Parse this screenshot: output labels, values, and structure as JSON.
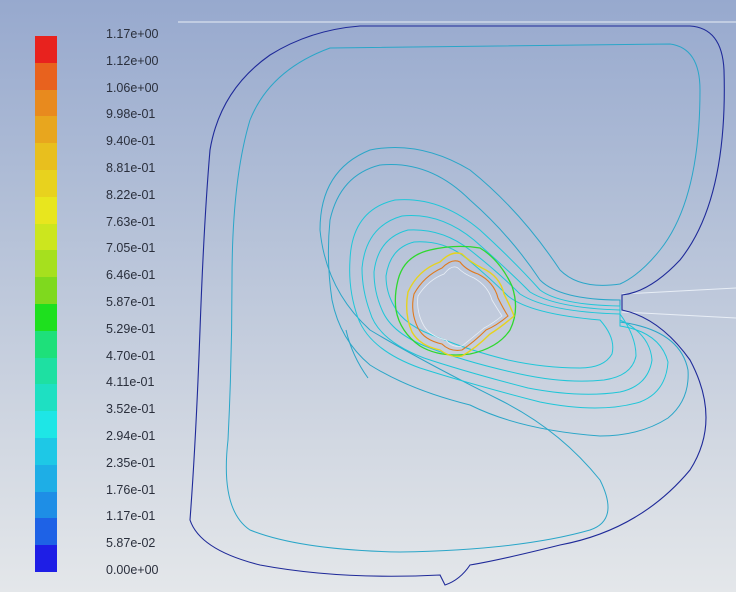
{
  "legend": {
    "labels": [
      "1.17e+00",
      "1.12e+00",
      "1.06e+00",
      "9.98e-01",
      "9.40e-01",
      "8.81e-01",
      "8.22e-01",
      "7.63e-01",
      "7.05e-01",
      "6.46e-01",
      "5.87e-01",
      "5.29e-01",
      "4.70e-01",
      "4.11e-01",
      "3.52e-01",
      "2.94e-01",
      "2.35e-01",
      "1.76e-01",
      "1.17e-01",
      "5.87e-02",
      "0.00e+00"
    ],
    "colors": [
      "#e8221e",
      "#e8621e",
      "#e88a1e",
      "#e8a61e",
      "#e8bf1e",
      "#e8d21e",
      "#e8e61e",
      "#cce61e",
      "#a6e01e",
      "#7fd91e",
      "#1ee01e",
      "#1ee07a",
      "#1ee0a2",
      "#1ee0c2",
      "#1ee6e6",
      "#1ec8e6",
      "#1eaee6",
      "#1e8ee6",
      "#1e62e6",
      "#1e1ee6"
    ]
  },
  "contour_colors": {
    "outer": "#1f2a99",
    "middle": "#2aa6c8",
    "inner": "#1fc6d8",
    "near_wall_green": "#2ed82e",
    "near_wall_yellow": "#e6d21e",
    "near_wall_orange": "#e07a1e",
    "wall_outline": "#e8eef6"
  }
}
